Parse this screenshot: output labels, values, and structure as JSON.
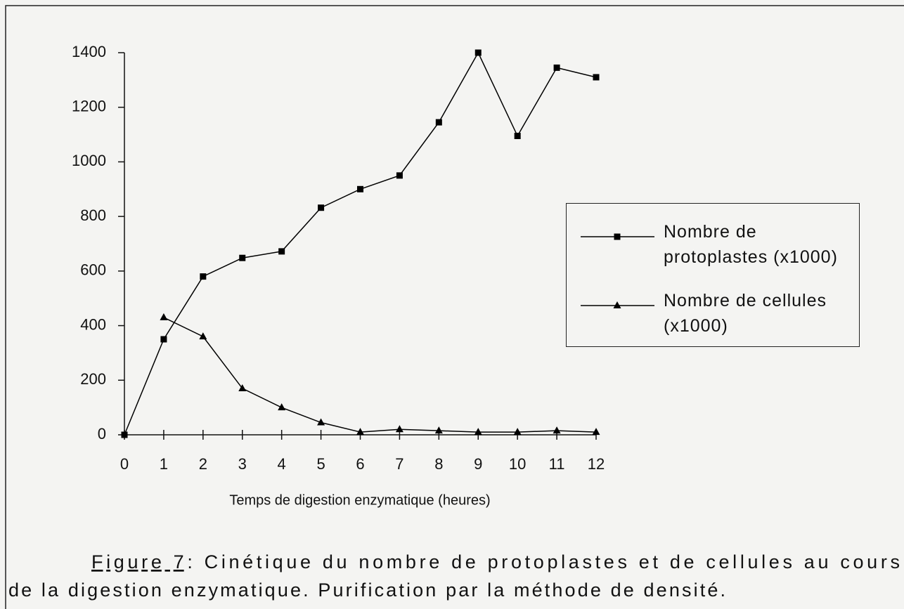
{
  "chart_data": {
    "type": "line",
    "x": [
      0,
      1,
      2,
      3,
      4,
      5,
      6,
      7,
      8,
      9,
      10,
      11,
      12
    ],
    "xlim": [
      0,
      12
    ],
    "xticks": [
      0,
      1,
      2,
      3,
      4,
      5,
      6,
      7,
      8,
      9,
      10,
      11,
      12
    ],
    "ylim": [
      0,
      1400
    ],
    "yticks": [
      0,
      200,
      400,
      600,
      800,
      1000,
      1200,
      1400
    ],
    "xlabel": "Temps de digestion enzymatique (heures)",
    "legend": "right",
    "series": [
      {
        "name": "Nombre de protoplastes (x1000)",
        "color": "#000000",
        "marker": "square",
        "values": [
          0,
          350,
          580,
          648,
          672,
          832,
          900,
          950,
          1145,
          1400,
          1095,
          1345,
          1310
        ]
      },
      {
        "name": "Nombre de cellules (x1000)",
        "color": "#000000",
        "marker": "triangle",
        "values": [
          null,
          430,
          360,
          170,
          100,
          45,
          10,
          20,
          15,
          10,
          10,
          15,
          10
        ]
      }
    ],
    "caption_label": "Figure 7",
    "caption_lines": [
      ": Cinétique du nombre de protoplastes et de cellules au cours",
      "de la digestion enzymatique. Purification par la méthode de densité."
    ]
  }
}
